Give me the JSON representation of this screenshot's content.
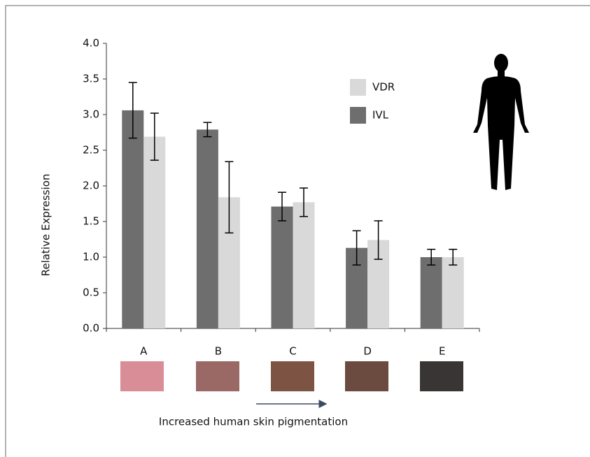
{
  "chart_data": {
    "type": "bar",
    "y_label": "Relative Expression",
    "x_label": "Increased human skin pigmentation",
    "categories": [
      "A",
      "B",
      "C",
      "D",
      "E"
    ],
    "series": [
      {
        "name": "IVL",
        "color": "#6e6e6e",
        "values": [
          3.06,
          2.79,
          1.71,
          1.13,
          1.0
        ],
        "errors": [
          0.39,
          0.1,
          0.2,
          0.24,
          0.11
        ]
      },
      {
        "name": "VDR",
        "color": "#d9d9d9",
        "values": [
          2.69,
          1.84,
          1.77,
          1.24,
          1.0
        ],
        "errors": [
          0.33,
          0.5,
          0.2,
          0.27,
          0.11
        ]
      }
    ],
    "ylim": [
      0,
      4
    ],
    "yticks": [
      {
        "value": 0,
        "label": "0.0"
      },
      0.5,
      {
        "value": 1,
        "label": "1.0"
      },
      1.5,
      {
        "value": 2,
        "label": "2.0"
      },
      2.5,
      {
        "value": 3,
        "label": "3.0"
      },
      3.5,
      {
        "value": 4,
        "label": "4.0"
      }
    ]
  }
}
